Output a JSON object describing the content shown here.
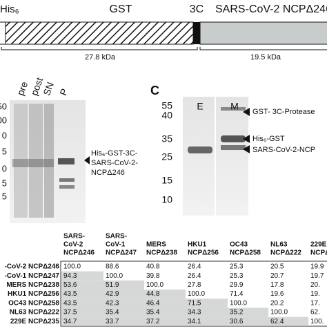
{
  "construct": {
    "his": "His₆",
    "gst": "GST",
    "protease_site": "3C",
    "ncp": "SARS-CoV-2 NCPΔ246",
    "mass_left": "27.8 kDa",
    "mass_right": "19.5 kDa"
  },
  "panel_b": {
    "lanes": [
      "pre",
      "post",
      "SN",
      "P"
    ],
    "markers": [
      "50",
      "00",
      "0",
      "5",
      "0",
      "5",
      "5"
    ],
    "annotation": [
      "His₆-GST-3C-",
      "SARS-CoV-2-",
      "NCPΔ246"
    ]
  },
  "panel_c": {
    "label": "C",
    "lanes": [
      "E",
      "M"
    ],
    "markers": [
      "55",
      "40",
      "35",
      "25",
      "15",
      "10"
    ],
    "annotations": [
      "GST- 3C-Protease",
      "His₆-GST",
      "SARS-CoV-2-NCP"
    ]
  },
  "table": {
    "headers": [
      [
        "SARS-",
        "CoV-2",
        "NCPΔ246"
      ],
      [
        "SARS-",
        "CoV-1",
        "NCPΔ247"
      ],
      [
        "MERS",
        "NCPΔ238"
      ],
      [
        "HKU1",
        "NCPΔ256"
      ],
      [
        "OC43",
        "NCPΔ258"
      ],
      [
        "NL63",
        "NCPΔ222"
      ],
      [
        "229E",
        "NCPΔ"
      ]
    ],
    "row_labels": [
      "-CoV-2 NCPΔ246",
      "-CoV-1 NCPΔ247",
      "MERS NCPΔ238",
      "HKU1 NCPΔ256",
      "OC43 NCPΔ258",
      "NL63 NCPΔ222",
      "229E NCPΔ235"
    ],
    "rows": [
      [
        "100.0",
        "88.6",
        "40.8",
        "26.4",
        "25.3",
        "20.5",
        "19.9"
      ],
      [
        "94.3",
        "100.0",
        "39.8",
        "26.4",
        "25.3",
        "20.7",
        "19.7"
      ],
      [
        "53.6",
        "51.9",
        "100.0",
        "27.8",
        "29.9",
        "17.8",
        "20."
      ],
      [
        "43.5",
        "42.9",
        "44.8",
        "100.0",
        "71.4",
        "19.6",
        "19."
      ],
      [
        "43.5",
        "42.3",
        "46.4",
        "71.5",
        "100.0",
        "20.2",
        "17."
      ],
      [
        "37.5",
        "35.4",
        "35.4",
        "34.3",
        "35.2",
        "100.0",
        "62."
      ],
      [
        "34.7",
        "33.7",
        "37.2",
        "34.1",
        "30.6",
        "62.4",
        "100."
      ]
    ]
  }
}
